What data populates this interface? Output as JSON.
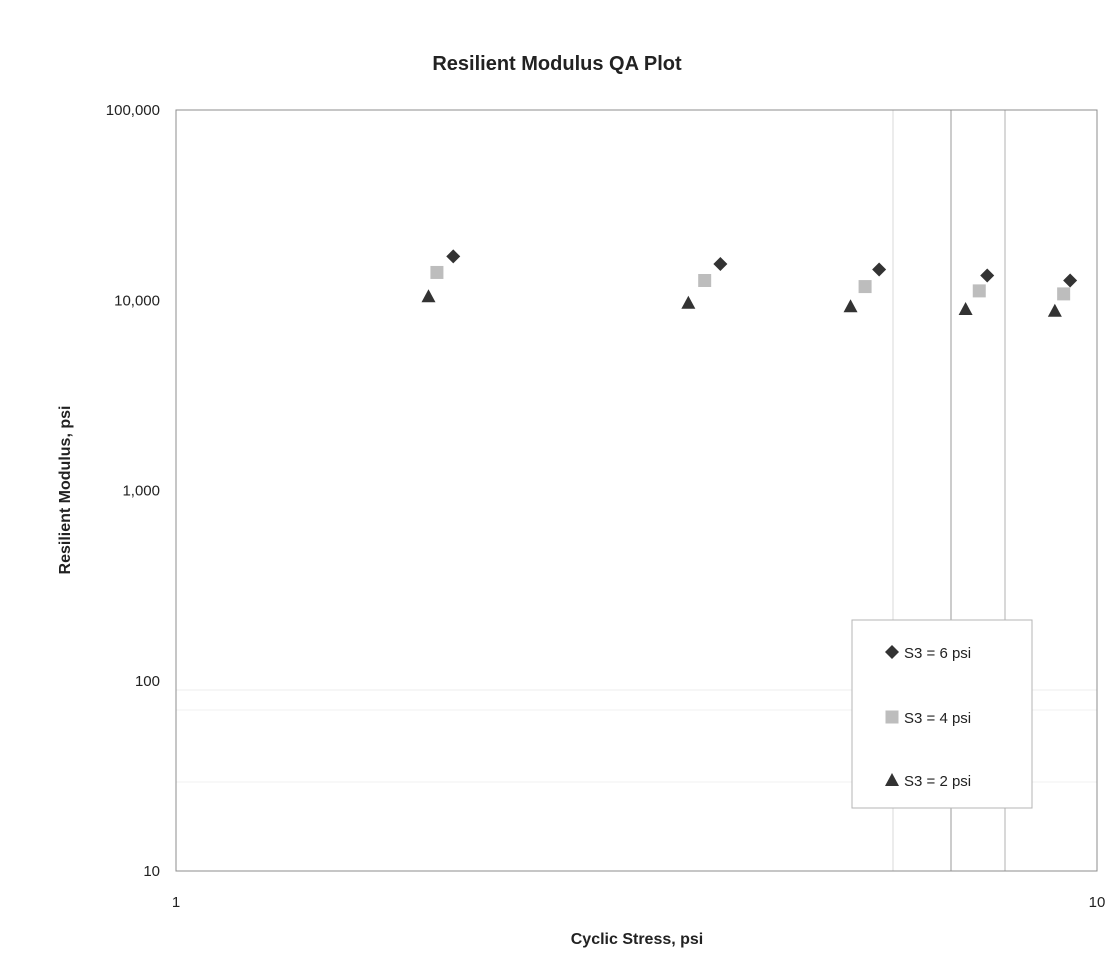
{
  "chart_data": {
    "type": "scatter",
    "title": "Resilient Modulus QA Plot",
    "xlabel": "Cyclic Stress,  psi",
    "ylabel": "Resilient Modulus,  psi",
    "x_scale": "log",
    "y_scale": "log",
    "xlim": [
      1,
      10
    ],
    "ylim": [
      10,
      100000
    ],
    "x_ticks": [
      1,
      10
    ],
    "x_tick_labels": [
      "1",
      "10"
    ],
    "y_ticks": [
      10,
      100,
      1000,
      10000,
      100000
    ],
    "y_tick_labels": [
      "10",
      "100",
      "1,000",
      "10,000",
      "100,000"
    ],
    "grid": false,
    "legend_position": "bottom-right",
    "series": [
      {
        "name": "S3  = 6 psi",
        "marker": "diamond",
        "color": "#333333",
        "points": [
          {
            "x": 2.0,
            "y": 17000
          },
          {
            "x": 3.9,
            "y": 15500
          },
          {
            "x": 5.8,
            "y": 14500
          },
          {
            "x": 7.6,
            "y": 13500
          },
          {
            "x": 9.35,
            "y": 12700
          }
        ]
      },
      {
        "name": "S3  = 4 psi",
        "marker": "square",
        "color": "#bdbdbd",
        "points": [
          {
            "x": 1.92,
            "y": 14000
          },
          {
            "x": 3.75,
            "y": 12700
          },
          {
            "x": 5.6,
            "y": 11800
          },
          {
            "x": 7.45,
            "y": 11200
          },
          {
            "x": 9.2,
            "y": 10800
          }
        ]
      },
      {
        "name": "S3  = 2 psi",
        "marker": "triangle",
        "color": "#333333",
        "points": [
          {
            "x": 1.88,
            "y": 10500
          },
          {
            "x": 3.6,
            "y": 9700
          },
          {
            "x": 5.4,
            "y": 9300
          },
          {
            "x": 7.2,
            "y": 9000
          },
          {
            "x": 9.0,
            "y": 8800
          }
        ]
      }
    ]
  }
}
